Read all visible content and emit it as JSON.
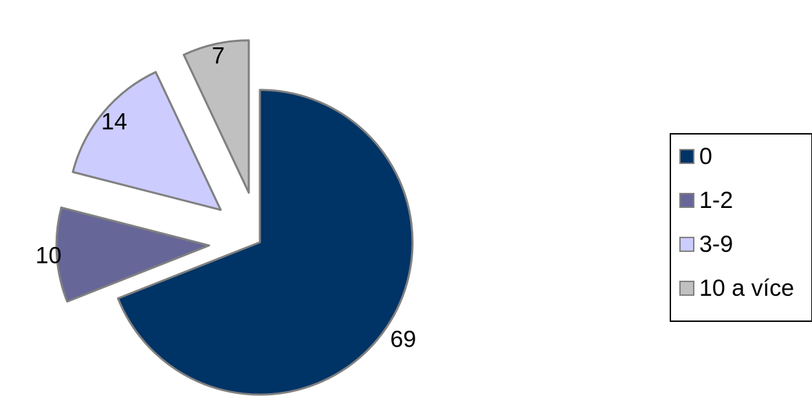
{
  "chart_data": {
    "type": "pie",
    "exploded": true,
    "legend_position": "right",
    "slices": [
      {
        "label": "0",
        "value": 69,
        "color": "#003366"
      },
      {
        "label": "1-2",
        "value": 10,
        "color": "#666699"
      },
      {
        "label": "3-9",
        "value": 14,
        "color": "#CCCCFF"
      },
      {
        "label": "10 a více",
        "value": 7,
        "color": "#C0C0C0"
      }
    ],
    "data_labels": [
      "69",
      "10",
      "14",
      "7"
    ],
    "legend_entries": [
      "0",
      "1-2",
      "3-9",
      "10 a více"
    ],
    "slice_outline_color": "#808080"
  }
}
